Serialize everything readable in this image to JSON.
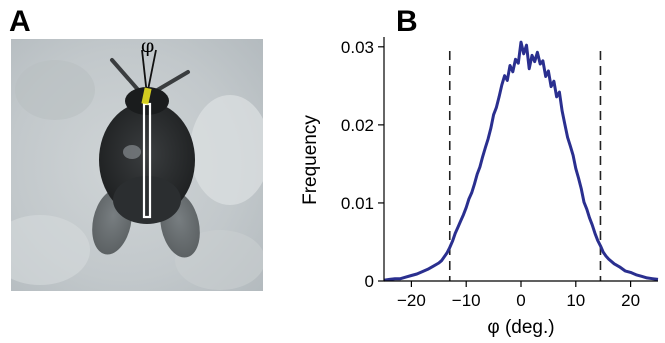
{
  "panels": {
    "a": {
      "letter": "A",
      "angle_symbol": "φ"
    },
    "b": {
      "letter": "B"
    }
  },
  "colors": {
    "curve": "#2a2f8f",
    "threshold": "#222222",
    "ref_line": "#111111",
    "body_axis": "#ffffff",
    "head_marker": "#e8e021"
  },
  "chart_data": {
    "type": "line",
    "title": "",
    "xlabel": "φ (deg.)",
    "ylabel": "Frequency",
    "xlim": [
      -25,
      25
    ],
    "ylim": [
      0,
      0.031
    ],
    "xticks": [
      -20,
      -10,
      0,
      10,
      20
    ],
    "yticks": [
      0,
      0.01,
      0.02,
      0.03
    ],
    "xtick_labels": [
      "−20",
      "−10",
      "0",
      "10",
      "20"
    ],
    "ytick_labels": [
      "0",
      "0.01",
      "0.02",
      "0.03"
    ],
    "grid": false,
    "legend": "none",
    "threshold_lines": [
      -13,
      14.5
    ],
    "series": [
      {
        "x": [
          -25,
          -24,
          -23,
          -22,
          -21,
          -20,
          -19,
          -18,
          -17,
          -16,
          -15,
          -14.5,
          -14,
          -13.5,
          -13,
          -12.5,
          -12,
          -11.5,
          -11,
          -10.5,
          -10,
          -9.5,
          -9,
          -8.5,
          -8,
          -7.5,
          -7,
          -6.5,
          -6,
          -5.5,
          -5,
          -4.5,
          -4,
          -3.5,
          -3,
          -2.5,
          -2,
          -1.5,
          -1,
          -0.5,
          0,
          0.5,
          1,
          1.5,
          2,
          2.5,
          3,
          3.5,
          4,
          4.5,
          5,
          5.5,
          6,
          6.5,
          7,
          7.5,
          8,
          8.5,
          9,
          9.5,
          10,
          10.5,
          11,
          11.5,
          12,
          12.5,
          13,
          13.5,
          14,
          14.5,
          15,
          15.5,
          16,
          17,
          18,
          19,
          20,
          21,
          22,
          23,
          24,
          25
        ],
        "y": [
          0.0001,
          0.0002,
          0.0003,
          0.0003,
          0.0005,
          0.0007,
          0.0009,
          0.0012,
          0.0015,
          0.0019,
          0.0023,
          0.0026,
          0.0031,
          0.0036,
          0.0043,
          0.0051,
          0.0061,
          0.0069,
          0.0077,
          0.0085,
          0.0094,
          0.0105,
          0.0113,
          0.0124,
          0.0137,
          0.0146,
          0.0159,
          0.0171,
          0.0182,
          0.0196,
          0.0213,
          0.0222,
          0.0236,
          0.0251,
          0.0263,
          0.0257,
          0.0276,
          0.0268,
          0.0284,
          0.0279,
          0.0306,
          0.0291,
          0.0302,
          0.0272,
          0.0289,
          0.0281,
          0.0293,
          0.0278,
          0.0282,
          0.0262,
          0.0269,
          0.0249,
          0.0256,
          0.0236,
          0.0242,
          0.0218,
          0.0201,
          0.0184,
          0.0173,
          0.0161,
          0.0144,
          0.0132,
          0.0118,
          0.0101,
          0.0092,
          0.0081,
          0.0072,
          0.0061,
          0.0052,
          0.0045,
          0.0037,
          0.0032,
          0.0028,
          0.0022,
          0.0018,
          0.0013,
          0.0011,
          0.0008,
          0.0006,
          0.0004,
          0.0003,
          0.0002
        ]
      }
    ]
  }
}
